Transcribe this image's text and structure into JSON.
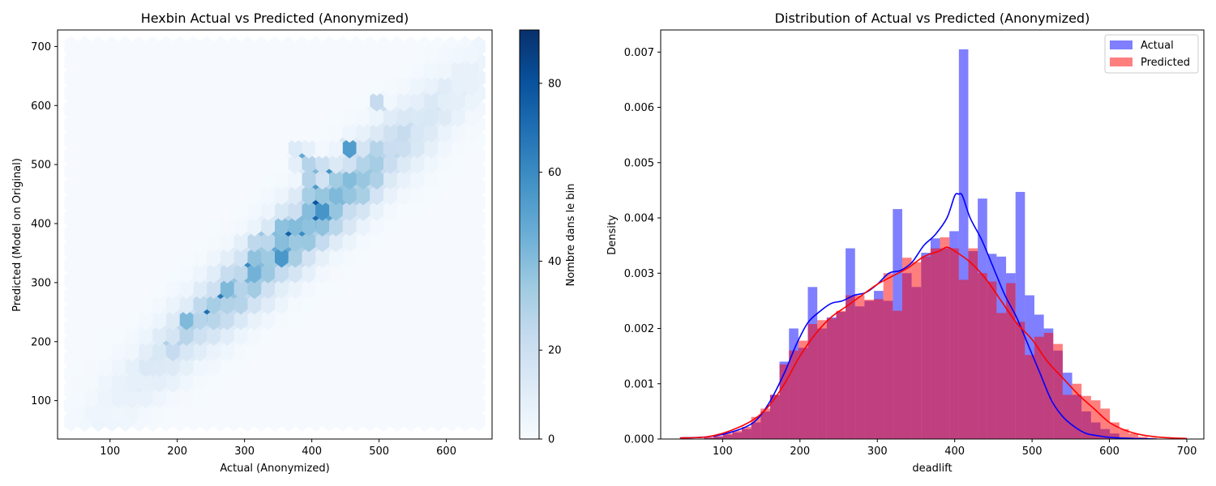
{
  "chart_data": [
    {
      "type": "heatmap",
      "subtype": "hexbin",
      "title": "Hexbin Actual vs Predicted (Anonymized)",
      "xlabel": "Actual (Anonymized)",
      "ylabel": "Predicted (Model on Original)",
      "xlim": [
        22,
        668
      ],
      "ylim": [
        35,
        728
      ],
      "xticks": [
        100,
        200,
        300,
        400,
        500,
        600
      ],
      "yticks": [
        100,
        200,
        300,
        400,
        500,
        600,
        700
      ],
      "colormap": "Blues",
      "colorbar": {
        "label": "Nombre dans le bin",
        "ticks": [
          0,
          20,
          40,
          60,
          80
        ],
        "vmin": 0,
        "vmax": 92
      },
      "gridsize": [
        30,
        24
      ],
      "hex_extent": {
        "x": [
          42,
          648
        ],
        "y": [
          65,
          700
        ]
      },
      "trend": {
        "slope": 1.0,
        "intercept": 2,
        "sigma": 42
      },
      "density_center": {
        "x": 380,
        "sigma_x": 135
      },
      "hotspots": [
        {
          "x": 410,
          "y": 428,
          "count": 92
        },
        {
          "x": 405,
          "y": 440,
          "count": 80
        },
        {
          "x": 405,
          "y": 415,
          "count": 78
        },
        {
          "x": 400,
          "y": 462,
          "count": 74
        },
        {
          "x": 385,
          "y": 395,
          "count": 72
        },
        {
          "x": 365,
          "y": 380,
          "count": 74
        },
        {
          "x": 380,
          "y": 385,
          "count": 70
        },
        {
          "x": 325,
          "y": 372,
          "count": 68
        },
        {
          "x": 345,
          "y": 365,
          "count": 66
        },
        {
          "x": 350,
          "y": 390,
          "count": 62
        },
        {
          "x": 420,
          "y": 405,
          "count": 64
        },
        {
          "x": 425,
          "y": 490,
          "count": 62
        },
        {
          "x": 400,
          "y": 490,
          "count": 58
        },
        {
          "x": 268,
          "y": 282,
          "count": 80
        },
        {
          "x": 245,
          "y": 258,
          "count": 82
        },
        {
          "x": 305,
          "y": 330,
          "count": 66
        },
        {
          "x": 290,
          "y": 305,
          "count": 58
        },
        {
          "x": 220,
          "y": 235,
          "count": 60
        },
        {
          "x": 205,
          "y": 210,
          "count": 50
        },
        {
          "x": 185,
          "y": 190,
          "count": 44
        },
        {
          "x": 360,
          "y": 343,
          "count": 56
        },
        {
          "x": 330,
          "y": 350,
          "count": 50
        },
        {
          "x": 455,
          "y": 530,
          "count": 48
        },
        {
          "x": 440,
          "y": 470,
          "count": 50
        },
        {
          "x": 385,
          "y": 515,
          "count": 46
        },
        {
          "x": 500,
          "y": 600,
          "count": 28
        }
      ]
    },
    {
      "type": "bar",
      "subtype": "histogram_with_kde",
      "title": "Distribution of Actual vs Predicted (Anonymized)",
      "xlabel": "deadlift",
      "ylabel": "Density",
      "xlim": [
        20,
        722
      ],
      "ylim": [
        0,
        0.0074
      ],
      "xticks": [
        100,
        200,
        300,
        400,
        500,
        600,
        700
      ],
      "yticks": [
        0.0,
        0.001,
        0.002,
        0.003,
        0.004,
        0.005,
        0.006,
        0.007
      ],
      "legend": {
        "position": "top-right",
        "entries": [
          "Actual",
          "Predicted"
        ]
      },
      "bin_width": 12.2,
      "series": [
        {
          "name": "Actual",
          "color": "#0000ff",
          "bin_start": 76,
          "hist": [
            2e-05,
            5e-05,
            8e-05,
            0.00012,
            0.00018,
            0.0003,
            0.0005,
            0.0008,
            0.0014,
            0.002,
            0.00165,
            0.00275,
            0.002,
            0.0022,
            0.0023,
            0.00345,
            0.0024,
            0.0025,
            0.00268,
            0.0025,
            0.00416,
            0.003,
            0.00275,
            0.00337,
            0.00363,
            0.00345,
            0.00376,
            0.00705,
            0.0034,
            0.00435,
            0.00335,
            0.0033,
            0.003,
            0.00447,
            0.0026,
            0.00225,
            0.002,
            0.0016,
            0.0012,
            0.0008,
            0.0005,
            0.0003,
            0.00018,
            0.0001
          ],
          "kde_x": [
            45,
            80,
            110,
            140,
            160,
            180,
            195,
            210,
            225,
            240,
            255,
            270,
            285,
            300,
            315,
            330,
            345,
            360,
            375,
            390,
            400,
            405,
            410,
            420,
            435,
            450,
            465,
            480,
            495,
            510,
            525,
            540,
            555,
            570,
            585,
            600,
            630,
            660
          ],
          "kde_y": [
            2e-05,
            4e-05,
            0.00012,
            0.0003,
            0.00065,
            0.0012,
            0.0017,
            0.0021,
            0.0023,
            0.00245,
            0.0025,
            0.0026,
            0.00265,
            0.0028,
            0.003,
            0.00305,
            0.0032,
            0.0035,
            0.0037,
            0.004,
            0.0044,
            0.00443,
            0.0044,
            0.004,
            0.0036,
            0.0031,
            0.0026,
            0.0022,
            0.0017,
            0.0012,
            0.0007,
            0.0004,
            0.00022,
            0.0001,
            6e-05,
            3e-05,
            1e-05,
            0.0
          ]
        },
        {
          "name": "Predicted",
          "color": "#ff0000",
          "bin_start": 76,
          "hist": [
            3e-05,
            5e-05,
            0.0001,
            0.00015,
            0.00022,
            0.0004,
            0.00055,
            0.0008,
            0.00135,
            0.0016,
            0.00178,
            0.00208,
            0.00215,
            0.00218,
            0.00232,
            0.0026,
            0.0026,
            0.00252,
            0.00253,
            0.003,
            0.00232,
            0.00328,
            0.0032,
            0.0033,
            0.00345,
            0.00365,
            0.00345,
            0.00288,
            0.00345,
            0.003,
            0.00285,
            0.00228,
            0.00282,
            0.00212,
            0.00152,
            0.00185,
            0.00192,
            0.00172,
            0.0008,
            0.001,
            0.00078,
            0.0007,
            0.00055,
            0.0003,
            0.00018,
            0.0001,
            4e-05,
            2e-05
          ],
          "kde_x": [
            45,
            80,
            110,
            140,
            160,
            180,
            200,
            220,
            240,
            260,
            280,
            300,
            320,
            340,
            360,
            380,
            390,
            400,
            420,
            440,
            460,
            480,
            500,
            520,
            540,
            560,
            580,
            600,
            620,
            640,
            660,
            680,
            700
          ],
          "kde_y": [
            2e-05,
            4e-05,
            0.00015,
            0.00035,
            0.0006,
            0.001,
            0.0015,
            0.0019,
            0.0022,
            0.0024,
            0.0026,
            0.0028,
            0.00295,
            0.0031,
            0.0033,
            0.0034,
            0.00347,
            0.0034,
            0.0032,
            0.0029,
            0.0025,
            0.0021,
            0.0018,
            0.0014,
            0.0011,
            0.0008,
            0.00055,
            0.0003,
            0.00016,
            8e-05,
            4e-05,
            2e-05,
            1e-05
          ]
        }
      ]
    }
  ]
}
